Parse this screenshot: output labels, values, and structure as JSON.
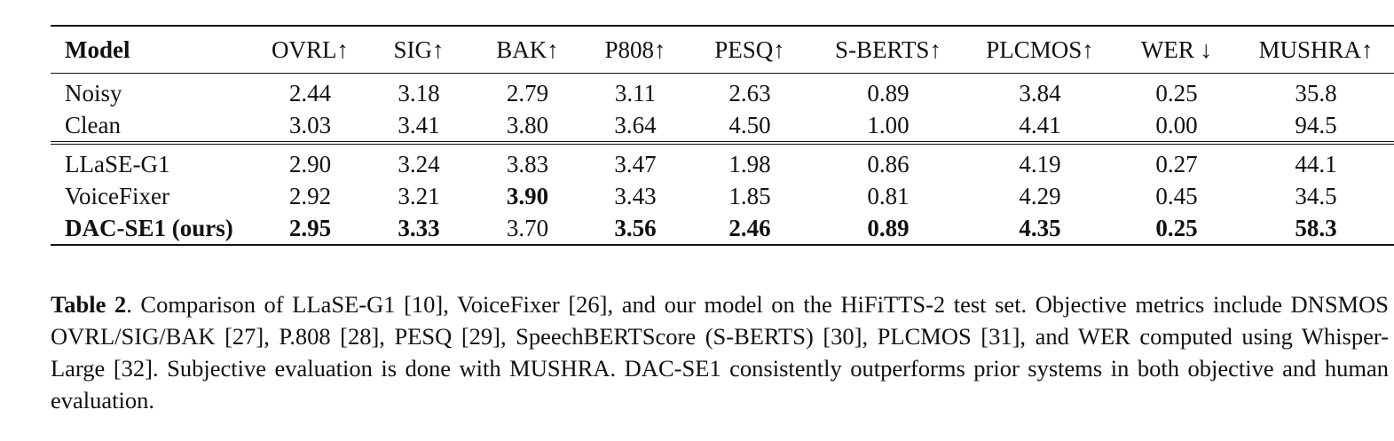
{
  "table": {
    "columns": [
      "Model",
      "OVRL↑",
      "SIG↑",
      "BAK↑",
      "P808↑",
      "PESQ↑",
      "S-BERTS↑",
      "PLCMOS↑",
      "WER ↓",
      "MUSHRA↑"
    ],
    "reference_rows": [
      {
        "model": "Noisy",
        "values": [
          "2.44",
          "3.18",
          "2.79",
          "3.11",
          "2.63",
          "0.89",
          "3.84",
          "0.25",
          "35.8"
        ],
        "bold": [
          false,
          false,
          false,
          false,
          false,
          false,
          false,
          false,
          false
        ],
        "model_bold": false
      },
      {
        "model": "Clean",
        "values": [
          "3.03",
          "3.41",
          "3.80",
          "3.64",
          "4.50",
          "1.00",
          "4.41",
          "0.00",
          "94.5"
        ],
        "bold": [
          false,
          false,
          false,
          false,
          false,
          false,
          false,
          false,
          false
        ],
        "model_bold": false
      }
    ],
    "system_rows": [
      {
        "model": "LLaSE-G1",
        "values": [
          "2.90",
          "3.24",
          "3.83",
          "3.47",
          "1.98",
          "0.86",
          "4.19",
          "0.27",
          "44.1"
        ],
        "bold": [
          false,
          false,
          false,
          false,
          false,
          false,
          false,
          false,
          false
        ],
        "model_bold": false
      },
      {
        "model": "VoiceFixer",
        "values": [
          "2.92",
          "3.21",
          "3.90",
          "3.43",
          "1.85",
          "0.81",
          "4.29",
          "0.45",
          "34.5"
        ],
        "bold": [
          false,
          false,
          true,
          false,
          false,
          false,
          false,
          false,
          false
        ],
        "model_bold": false
      },
      {
        "model": "DAC-SE1 (ours)",
        "values": [
          "2.95",
          "3.33",
          "3.70",
          "3.56",
          "2.46",
          "0.89",
          "4.35",
          "0.25",
          "58.3"
        ],
        "bold": [
          true,
          true,
          false,
          true,
          true,
          true,
          true,
          true,
          true
        ],
        "model_bold": true
      }
    ]
  },
  "caption": {
    "label": "Table 2",
    "text": ".  Comparison of LLaSE-G1 [10], VoiceFixer [26], and our model on the HiFiTTS-2 test set. Objective metrics include DNSMOS OVRL/SIG/BAK [27], P.808 [28], PESQ [29], SpeechBERTScore (S-BERTS) [30], PLCMOS [31], and WER computed using Whisper-Large [32]. Subjective evaluation is done with MUSHRA. DAC-SE1 consistently outperforms prior systems in both objective and human evaluation."
  }
}
